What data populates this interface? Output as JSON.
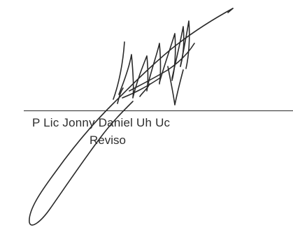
{
  "signature_block": {
    "signer_name": "P  Lic  Jonny Daniel Uh Uc",
    "signer_role": "Reviso"
  },
  "colors": {
    "ink": "#2a2a2a",
    "text": "#2e2e2e",
    "background": "#ffffff"
  }
}
